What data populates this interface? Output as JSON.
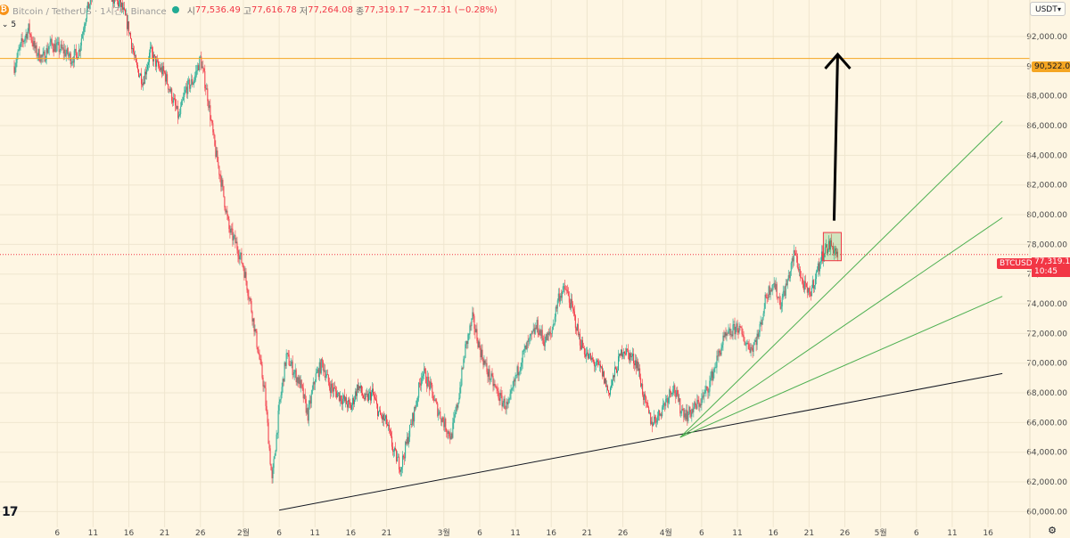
{
  "header": {
    "symbol_title": "Bitcoin / TetherUS · 1시간 · Binance",
    "ohlc": [
      {
        "key": "시",
        "value": "77,536.49"
      },
      {
        "key": "고",
        "value": "77,616.78"
      },
      {
        "key": "저",
        "value": "77,264.08"
      },
      {
        "key": "종",
        "value": "77,319.17"
      }
    ],
    "change": "−217.31 (−0.28%)",
    "interval": "5",
    "icon": "bitcoin-icon"
  },
  "currency_button": {
    "label": "USDT"
  },
  "price_tags": {
    "level": "90,522.05",
    "symbol": "BTCUSDT",
    "last_price": "77,319.17",
    "countdown": "10:45"
  },
  "branding": {
    "logo_text": "17"
  },
  "colors": {
    "background": "#fef6e3",
    "up": "#22ab94",
    "down": "#f23645",
    "level_line": "#f5a623",
    "fan_lines": "#4caf50",
    "trend_line": "#131722"
  },
  "chart_data": {
    "type": "candlestick",
    "title": "",
    "xlabel": "",
    "ylabel": "",
    "ylim": [
      59800,
      94600
    ],
    "y_ticks": [
      60000,
      62000,
      64000,
      66000,
      68000,
      70000,
      72000,
      74000,
      76000,
      78000,
      80000,
      82000,
      84000,
      86000,
      88000,
      90000,
      92000
    ],
    "y_tick_labels": [
      "60,000.00",
      "62,000.00",
      "64,000.00",
      "66,000.00",
      "68,000.00",
      "70,000.00",
      "72,000.00",
      "74,000.00",
      "76,000.00",
      "78,000.00",
      "80,000.00",
      "82,000.00",
      "84,000.00",
      "86,000.00",
      "88,000.00",
      "90,000.00",
      "92,000.00"
    ],
    "x_ticks": [
      {
        "day": 6,
        "label": "6"
      },
      {
        "day": 11,
        "label": "11"
      },
      {
        "day": 16,
        "label": "16"
      },
      {
        "day": 21,
        "label": "21"
      },
      {
        "day": 26,
        "label": "26"
      },
      {
        "day": 32,
        "label": "2월"
      },
      {
        "day": 37,
        "label": "6"
      },
      {
        "day": 42,
        "label": "11"
      },
      {
        "day": 47,
        "label": "16"
      },
      {
        "day": 52,
        "label": "21"
      },
      {
        "day": 60,
        "label": "3월"
      },
      {
        "day": 65,
        "label": "6"
      },
      {
        "day": 70,
        "label": "11"
      },
      {
        "day": 75,
        "label": "16"
      },
      {
        "day": 80,
        "label": "21"
      },
      {
        "day": 85,
        "label": "26"
      },
      {
        "day": 91,
        "label": "4월"
      },
      {
        "day": 96,
        "label": "6"
      },
      {
        "day": 101,
        "label": "11"
      },
      {
        "day": 106,
        "label": "16"
      },
      {
        "day": 111,
        "label": "21"
      },
      {
        "day": 116,
        "label": "26"
      },
      {
        "day": 121,
        "label": "5월"
      },
      {
        "day": 126,
        "label": "6"
      },
      {
        "day": 131,
        "label": "11"
      },
      {
        "day": 136,
        "label": "16"
      }
    ],
    "price_path": [
      [
        0,
        90000
      ],
      [
        1,
        91500
      ],
      [
        2,
        92500
      ],
      [
        3,
        91000
      ],
      [
        4,
        90500
      ],
      [
        5,
        91500
      ],
      [
        7,
        91000
      ],
      [
        8,
        90500
      ],
      [
        9,
        91000
      ],
      [
        10,
        93500
      ],
      [
        11,
        95000
      ],
      [
        12,
        95500
      ],
      [
        13,
        95000
      ],
      [
        15,
        94000
      ],
      [
        16,
        92500
      ],
      [
        17,
        90000
      ],
      [
        18,
        89000
      ],
      [
        19,
        91000
      ],
      [
        20,
        90000
      ],
      [
        21,
        89500
      ],
      [
        22,
        88000
      ],
      [
        23,
        86500
      ],
      [
        24,
        88500
      ],
      [
        25,
        89000
      ],
      [
        26,
        90500
      ],
      [
        27,
        88000
      ],
      [
        28,
        84500
      ],
      [
        29,
        82000
      ],
      [
        30,
        79000
      ],
      [
        31,
        78000
      ],
      [
        32,
        76500
      ],
      [
        33,
        74000
      ],
      [
        34,
        71000
      ],
      [
        35,
        68000
      ],
      [
        36,
        62000
      ],
      [
        37,
        67000
      ],
      [
        38,
        70500
      ],
      [
        39,
        69500
      ],
      [
        40,
        68500
      ],
      [
        41,
        66500
      ],
      [
        42,
        69000
      ],
      [
        43,
        70000
      ],
      [
        44,
        68500
      ],
      [
        45,
        68000
      ],
      [
        46,
        67500
      ],
      [
        47,
        67000
      ],
      [
        48,
        68500
      ],
      [
        49,
        67500
      ],
      [
        50,
        68000
      ],
      [
        51,
        66500
      ],
      [
        52,
        66000
      ],
      [
        53,
        64000
      ],
      [
        54,
        63000
      ],
      [
        55,
        65000
      ],
      [
        56,
        67000
      ],
      [
        57,
        69500
      ],
      [
        58,
        68500
      ],
      [
        59,
        67000
      ],
      [
        60,
        66000
      ],
      [
        61,
        65000
      ],
      [
        62,
        67500
      ],
      [
        63,
        71000
      ],
      [
        64,
        73000
      ],
      [
        65,
        71000
      ],
      [
        66,
        69500
      ],
      [
        67,
        68500
      ],
      [
        68,
        67500
      ],
      [
        69,
        67000
      ],
      [
        70,
        69000
      ],
      [
        71,
        70500
      ],
      [
        72,
        71500
      ],
      [
        73,
        72500
      ],
      [
        74,
        71500
      ],
      [
        75,
        72000
      ],
      [
        76,
        74500
      ],
      [
        77,
        75000
      ],
      [
        78,
        73500
      ],
      [
        79,
        71500
      ],
      [
        80,
        70500
      ],
      [
        81,
        70000
      ],
      [
        82,
        69500
      ],
      [
        83,
        68000
      ],
      [
        84,
        69500
      ],
      [
        85,
        71000
      ],
      [
        86,
        70500
      ],
      [
        87,
        70000
      ],
      [
        88,
        67500
      ],
      [
        89,
        66000
      ],
      [
        90,
        66500
      ],
      [
        91,
        67500
      ],
      [
        92,
        68500
      ],
      [
        93,
        67000
      ],
      [
        94,
        66500
      ],
      [
        95,
        67000
      ],
      [
        96,
        67500
      ],
      [
        97,
        68500
      ],
      [
        98,
        70000
      ],
      [
        99,
        71500
      ],
      [
        100,
        72000
      ],
      [
        101,
        72500
      ],
      [
        102,
        71500
      ],
      [
        103,
        71000
      ],
      [
        104,
        72000
      ],
      [
        105,
        74500
      ],
      [
        106,
        75500
      ],
      [
        107,
        74000
      ],
      [
        108,
        75500
      ],
      [
        109,
        77500
      ],
      [
        110,
        75500
      ],
      [
        111,
        74500
      ],
      [
        112,
        76000
      ],
      [
        113,
        77500
      ],
      [
        114,
        78000
      ],
      [
        115,
        77300
      ]
    ],
    "markers": {
      "level_price": 90522.05,
      "last_price": 77319.17,
      "box": {
        "x1": 113,
        "x2": 115.5,
        "y1": 76900,
        "y2": 78800
      },
      "arrow": {
        "x1": 114.5,
        "x2": 115,
        "y1": 79600,
        "y2": 90800
      },
      "trend_line": {
        "x1": 37,
        "y1": 60100,
        "x2": 138,
        "y2": 69300
      },
      "fan_lines": [
        {
          "x1": 93,
          "y1": 65000,
          "x2": 138,
          "y2": 86300
        },
        {
          "x1": 93,
          "y1": 65000,
          "x2": 138,
          "y2": 79800
        },
        {
          "x1": 93,
          "y1": 65000,
          "x2": 138,
          "y2": 74500
        }
      ]
    }
  }
}
